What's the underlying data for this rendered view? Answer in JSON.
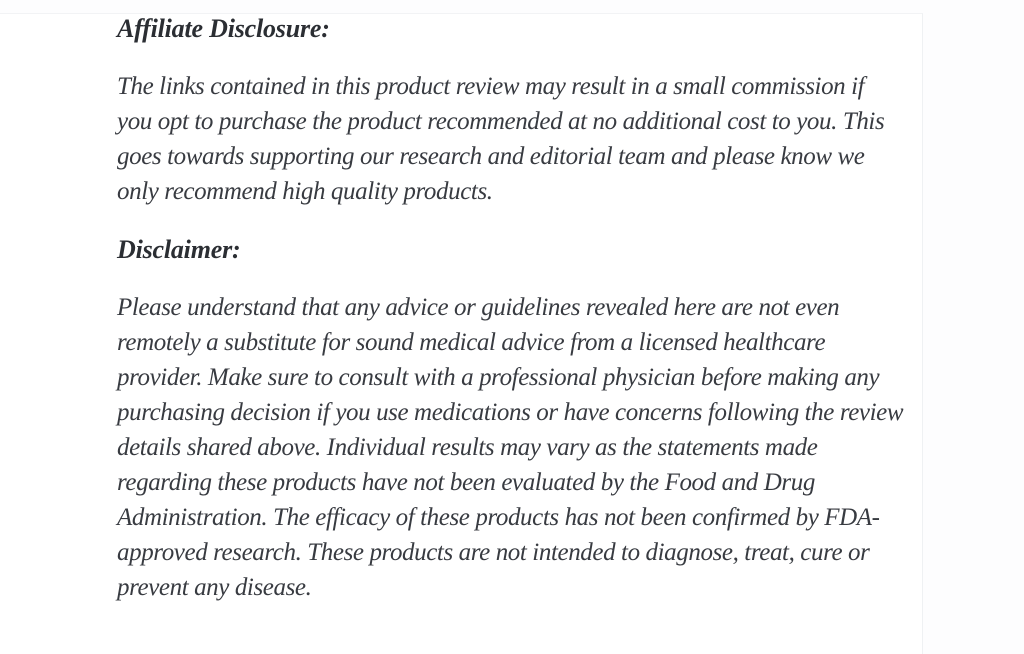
{
  "page": {
    "background_color": "#ffffff",
    "text_color": "#383b41",
    "heading_color": "#2b2e33",
    "card_edge_color": "#eff1f3"
  },
  "content": {
    "affiliate_heading": "Affiliate Disclosure:",
    "affiliate_paragraph": "The links contained in this product review may result in a small commission if\nyou opt to purchase the product recommended at no additional cost to you. This\ngoes towards supporting our research and editorial team and please know we\nonly recommend high quality products.",
    "disclaimer_heading": "Disclaimer:",
    "disclaimer_paragraph": "Please understand that any advice or guidelines revealed here are not even\nremotely a substitute for sound medical advice from a licensed healthcare\nprovider. Make sure to consult with a professional physician before making any\npurchasing decision if you use medications or have concerns following the review\ndetails shared above. Individual results may vary as the statements made\nregarding these products have not been evaluated by the Food and Drug\nAdministration. The efficacy of these products has not been confirmed by FDA-\napproved research. These products are not intended to diagnose, treat, cure or\nprevent any disease."
  }
}
